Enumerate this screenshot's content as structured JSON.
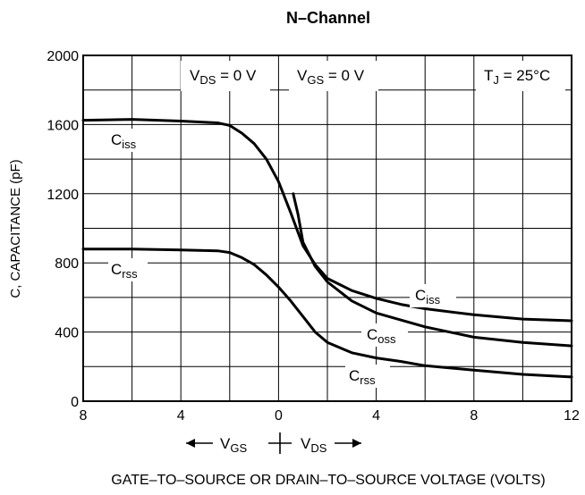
{
  "chart_data": {
    "type": "line",
    "title": "N–Channel",
    "ylabel": "C, CAPACITANCE (pF)",
    "xlabel": "GATE–TO–SOURCE OR DRAIN–TO–SOURCE VOLTAGE (VOLTS)",
    "x_direction": {
      "left": "V",
      "left_sub": "GS",
      "right": "V",
      "right_sub": "DS"
    },
    "x_segments": {
      "vgs_range": [
        8,
        0
      ],
      "vds_range": [
        0,
        12
      ]
    },
    "x_ticks": [
      "8",
      "4",
      "0",
      "4",
      "8",
      "12"
    ],
    "y_ticks": [
      "0",
      "400",
      "800",
      "1200",
      "1600",
      "2000"
    ],
    "ylim": [
      0,
      2000
    ],
    "grid": true,
    "annotations": {
      "vds_zero": {
        "main": "V",
        "sub": "DS",
        "rest": " = 0 V"
      },
      "vgs_zero": {
        "main": "V",
        "sub": "GS",
        "rest": " = 0 V"
      },
      "tj": {
        "main": "T",
        "sub": "J",
        "rest": " = 25°C"
      }
    },
    "series": [
      {
        "name": "Ciss",
        "label_main": "C",
        "label_sub": "iss",
        "points": [
          [
            -8,
            1625
          ],
          [
            -6,
            1630
          ],
          [
            -4,
            1620
          ],
          [
            -2.5,
            1610
          ],
          [
            -2,
            1595
          ],
          [
            -1.5,
            1550
          ],
          [
            -1,
            1490
          ],
          [
            -0.5,
            1400
          ],
          [
            0,
            1270
          ],
          [
            0.5,
            1090
          ],
          [
            1,
            900
          ],
          [
            1.5,
            790
          ],
          [
            2,
            710
          ],
          [
            3,
            640
          ],
          [
            4,
            595
          ],
          [
            5,
            560
          ],
          [
            6,
            535
          ],
          [
            8,
            500
          ],
          [
            10,
            475
          ],
          [
            12,
            465
          ]
        ]
      },
      {
        "name": "Crss",
        "label_main": "C",
        "label_sub": "rss",
        "points": [
          [
            -8,
            880
          ],
          [
            -6,
            880
          ],
          [
            -4,
            875
          ],
          [
            -2.5,
            870
          ],
          [
            -2,
            860
          ],
          [
            -1.5,
            830
          ],
          [
            -1,
            790
          ],
          [
            -0.5,
            730
          ],
          [
            0,
            660
          ],
          [
            0.5,
            580
          ],
          [
            1,
            490
          ],
          [
            1.5,
            400
          ],
          [
            2,
            340
          ],
          [
            3,
            280
          ],
          [
            4,
            250
          ],
          [
            5,
            230
          ],
          [
            6,
            205
          ],
          [
            8,
            180
          ],
          [
            10,
            155
          ],
          [
            12,
            140
          ]
        ]
      },
      {
        "name": "Coss",
        "label_main": "C",
        "label_sub": "oss",
        "points": [
          [
            0.6,
            1200
          ],
          [
            0.8,
            1080
          ],
          [
            1,
            920
          ],
          [
            1.5,
            780
          ],
          [
            2,
            690
          ],
          [
            3,
            580
          ],
          [
            4,
            510
          ],
          [
            6,
            430
          ],
          [
            8,
            370
          ],
          [
            10,
            340
          ],
          [
            12,
            320
          ]
        ]
      }
    ]
  }
}
